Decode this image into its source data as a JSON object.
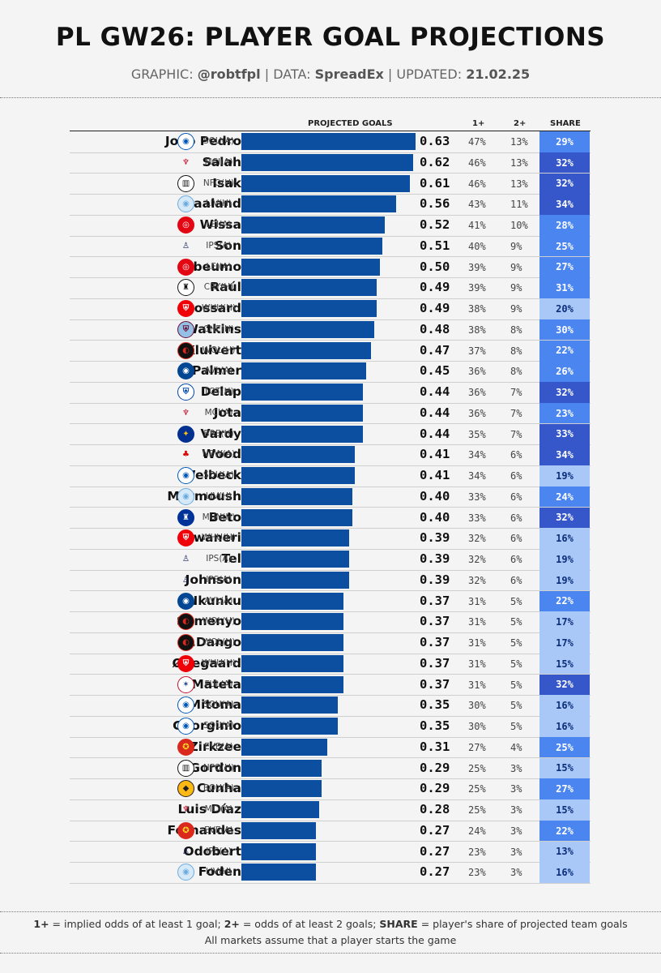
{
  "header": {
    "title": "PL GW26: PLAYER GOAL PROJECTIONS",
    "graphic_label": "GRAPHIC:",
    "graphic_value": "@robtfpl",
    "data_label": "DATA:",
    "data_value": "SpreadEx",
    "updated_label": "UPDATED:",
    "updated_value": "21.02.25",
    "separator": "|"
  },
  "footer": {
    "key1": "1+",
    "text1": " = implied odds of at least 1 goal; ",
    "key2": "2+",
    "text2": " = odds of at least 2 goals; ",
    "key3": "SHARE",
    "text3": " = player's share of projected team goals",
    "line2": "All markets assume that a player starts the game"
  },
  "chart_data": {
    "type": "bar",
    "orientation": "horizontal",
    "columns": {
      "projected": "PROJECTED GOALS",
      "p1": "1+",
      "p2": "2+",
      "share": "SHARE"
    },
    "xlim": [
      0,
      0.63
    ],
    "colors": {
      "bar": "#0c4fa0",
      "share_low": "#a9c7f7",
      "share_mid": "#4a85f0",
      "share_high": "#3557c9"
    },
    "rows": [
      {
        "player": "João Pedro",
        "team": "brighton",
        "fixture": "SOU(A)",
        "goals": "0.63",
        "p1": "47%",
        "p2": "13%",
        "share": "29%"
      },
      {
        "player": "Salah",
        "team": "liverpool",
        "fixture": "MCI(A)",
        "goals": "0.62",
        "p1": "46%",
        "p2": "13%",
        "share": "32%"
      },
      {
        "player": "Isak",
        "team": "newcastle",
        "fixture": "NFO(H)",
        "goals": "0.61",
        "p1": "46%",
        "p2": "13%",
        "share": "32%"
      },
      {
        "player": "Haaland",
        "team": "mancity",
        "fixture": "LIV(H)",
        "goals": "0.56",
        "p1": "43%",
        "p2": "11%",
        "share": "34%"
      },
      {
        "player": "Wissa",
        "team": "brentford",
        "fixture": "LEI(A)",
        "goals": "0.52",
        "p1": "41%",
        "p2": "10%",
        "share": "28%"
      },
      {
        "player": "Son",
        "team": "spurs",
        "fixture": "IPS(A)",
        "goals": "0.51",
        "p1": "40%",
        "p2": "9%",
        "share": "25%"
      },
      {
        "player": "Mbeumo",
        "team": "brentford",
        "fixture": "LEI(A)",
        "goals": "0.50",
        "p1": "39%",
        "p2": "9%",
        "share": "27%"
      },
      {
        "player": "Raúl",
        "team": "fulham",
        "fixture": "CRY(H)",
        "goals": "0.49",
        "p1": "39%",
        "p2": "9%",
        "share": "31%"
      },
      {
        "player": "Trossard",
        "team": "arsenal",
        "fixture": "WHU(H)",
        "goals": "0.49",
        "p1": "38%",
        "p2": "9%",
        "share": "20%"
      },
      {
        "player": "Watkins",
        "team": "villa",
        "fixture": "CHE(H)",
        "goals": "0.48",
        "p1": "38%",
        "p2": "8%",
        "share": "30%"
      },
      {
        "player": "Kluivert",
        "team": "bournemouth",
        "fixture": "WOL(H)",
        "goals": "0.47",
        "p1": "37%",
        "p2": "8%",
        "share": "22%"
      },
      {
        "player": "Palmer",
        "team": "chelsea",
        "fixture": "AVL(A)",
        "goals": "0.45",
        "p1": "36%",
        "p2": "8%",
        "share": "26%"
      },
      {
        "player": "Delap",
        "team": "ipswich",
        "fixture": "TOT(H)",
        "goals": "0.44",
        "p1": "36%",
        "p2": "7%",
        "share": "32%"
      },
      {
        "player": "Jota",
        "team": "liverpool",
        "fixture": "MCI(A)",
        "goals": "0.44",
        "p1": "36%",
        "p2": "7%",
        "share": "23%"
      },
      {
        "player": "Vardy",
        "team": "leicester",
        "fixture": "BRE(H)",
        "goals": "0.44",
        "p1": "35%",
        "p2": "7%",
        "share": "33%"
      },
      {
        "player": "Wood",
        "team": "forest",
        "fixture": "NEW(A)",
        "goals": "0.41",
        "p1": "34%",
        "p2": "6%",
        "share": "34%"
      },
      {
        "player": "Welbeck",
        "team": "brighton",
        "fixture": "SOU(A)",
        "goals": "0.41",
        "p1": "34%",
        "p2": "6%",
        "share": "19%"
      },
      {
        "player": "Marmoush",
        "team": "mancity",
        "fixture": "LIV(H)",
        "goals": "0.40",
        "p1": "33%",
        "p2": "6%",
        "share": "24%"
      },
      {
        "player": "Beto",
        "team": "everton",
        "fixture": "MUN(H)",
        "goals": "0.40",
        "p1": "33%",
        "p2": "6%",
        "share": "32%"
      },
      {
        "player": "Nwaneri",
        "team": "arsenal",
        "fixture": "WHU(H)",
        "goals": "0.39",
        "p1": "32%",
        "p2": "6%",
        "share": "16%"
      },
      {
        "player": "Tel",
        "team": "spurs",
        "fixture": "IPS(A)",
        "goals": "0.39",
        "p1": "32%",
        "p2": "6%",
        "share": "19%"
      },
      {
        "player": "Johnson",
        "team": "spurs",
        "fixture": "IPS(A)",
        "goals": "0.39",
        "p1": "32%",
        "p2": "6%",
        "share": "19%"
      },
      {
        "player": "Nkunku",
        "team": "chelsea",
        "fixture": "AVL(A)",
        "goals": "0.37",
        "p1": "31%",
        "p2": "5%",
        "share": "22%"
      },
      {
        "player": "Semenyo",
        "team": "bournemouth",
        "fixture": "WOL(H)",
        "goals": "0.37",
        "p1": "31%",
        "p2": "5%",
        "share": "17%"
      },
      {
        "player": "O.Dango",
        "team": "bournemouth",
        "fixture": "WOL(H)",
        "goals": "0.37",
        "p1": "31%",
        "p2": "5%",
        "share": "17%"
      },
      {
        "player": "Ødegaard",
        "team": "arsenal",
        "fixture": "WHU(H)",
        "goals": "0.37",
        "p1": "31%",
        "p2": "5%",
        "share": "15%"
      },
      {
        "player": "Mateta",
        "team": "palace",
        "fixture": "FUL(A)",
        "goals": "0.37",
        "p1": "31%",
        "p2": "5%",
        "share": "32%"
      },
      {
        "player": "Mitoma",
        "team": "brighton",
        "fixture": "SOU(A)",
        "goals": "0.35",
        "p1": "30%",
        "p2": "5%",
        "share": "16%"
      },
      {
        "player": "Georginio",
        "team": "brighton",
        "fixture": "SOU(A)",
        "goals": "0.35",
        "p1": "30%",
        "p2": "5%",
        "share": "16%"
      },
      {
        "player": "Zirkzee",
        "team": "manutd",
        "fixture": "EVE(A)",
        "goals": "0.31",
        "p1": "27%",
        "p2": "4%",
        "share": "25%"
      },
      {
        "player": "Gordon",
        "team": "newcastle",
        "fixture": "NFO(H)",
        "goals": "0.29",
        "p1": "25%",
        "p2": "3%",
        "share": "15%"
      },
      {
        "player": "Cunha",
        "team": "wolves",
        "fixture": "BOU(A)",
        "goals": "0.29",
        "p1": "25%",
        "p2": "3%",
        "share": "27%"
      },
      {
        "player": "Luis Díaz",
        "team": "liverpool",
        "fixture": "MCI(A)",
        "goals": "0.28",
        "p1": "25%",
        "p2": "3%",
        "share": "15%"
      },
      {
        "player": "Fernandes",
        "team": "manutd",
        "fixture": "EVE(A)",
        "goals": "0.27",
        "p1": "24%",
        "p2": "3%",
        "share": "22%"
      },
      {
        "player": "Odobert",
        "team": "spurs",
        "fixture": "IPS(A)",
        "goals": "0.27",
        "p1": "23%",
        "p2": "3%",
        "share": "13%"
      },
      {
        "player": "Foden",
        "team": "mancity",
        "fixture": "LIV(H)",
        "goals": "0.27",
        "p1": "23%",
        "p2": "3%",
        "share": "16%"
      }
    ]
  }
}
